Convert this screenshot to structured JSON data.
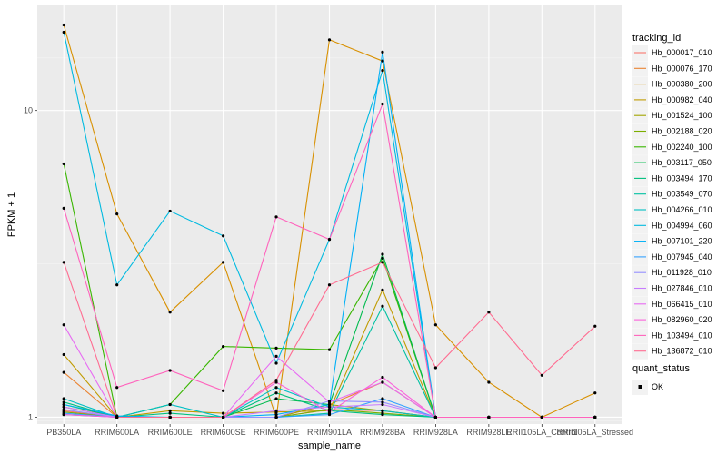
{
  "chart_data": {
    "type": "line",
    "xlabel": "sample_name",
    "ylabel": "FPKM + 1",
    "y_scale": "log10",
    "ylim": [
      0.95,
      22
    ],
    "y_ticks": [
      1,
      10
    ],
    "y_tick_labels": [
      "1",
      "10"
    ],
    "grid": true,
    "legend_position": "right",
    "categories": [
      "PB350LA",
      "RRIM600LA",
      "RRIM600LE",
      "RRIM600SE",
      "RRIM600PE",
      "RRIM901LA",
      "RRIM928BA",
      "RRIM928LA",
      "RRIM928LE",
      "RRII105LA_Control",
      "RRII105LA_Stressed"
    ],
    "legend_title": "tracking_id",
    "series": [
      {
        "name": "Hb_000017_010",
        "color": "#F8766D",
        "values": [
          1.05,
          1,
          1,
          1,
          1,
          1.06,
          1.05,
          1,
          1,
          1,
          1
        ]
      },
      {
        "name": "Hb_000076_170",
        "color": "#EA8331",
        "values": [
          1.4,
          1,
          1,
          1,
          1,
          1.1,
          1.3,
          1,
          1,
          1,
          1
        ]
      },
      {
        "name": "Hb_000380_200",
        "color": "#D89000",
        "values": [
          19,
          4.6,
          2.2,
          3.2,
          1,
          17,
          14.5,
          2,
          1.3,
          1,
          1.2
        ]
      },
      {
        "name": "Hb_000982_040",
        "color": "#C09B00",
        "values": [
          1.6,
          1,
          1.05,
          1.03,
          1.04,
          1.05,
          2.6,
          1,
          1,
          1,
          1
        ]
      },
      {
        "name": "Hb_001524_100",
        "color": "#A3A500",
        "values": [
          1.08,
          1,
          1,
          1,
          1,
          1.1,
          1.05,
          1,
          1,
          1,
          1
        ]
      },
      {
        "name": "Hb_002188_020",
        "color": "#7CAE00",
        "values": [
          1.04,
          1,
          1,
          1,
          1,
          1.06,
          1.03,
          1,
          1,
          1,
          1
        ]
      },
      {
        "name": "Hb_002240_100",
        "color": "#39B600",
        "values": [
          6.7,
          1,
          1.1,
          1.7,
          1.68,
          1.66,
          3.3,
          1,
          1,
          1,
          1
        ]
      },
      {
        "name": "Hb_003117_050",
        "color": "#00BB4E",
        "values": [
          1.1,
          1,
          1,
          1,
          1.15,
          1.1,
          3.4,
          1,
          1,
          1,
          1
        ]
      },
      {
        "name": "Hb_003494_170",
        "color": "#00BF7D",
        "values": [
          1.12,
          1,
          1.03,
          1,
          1.2,
          1.05,
          1.02,
          1,
          1,
          1,
          1
        ]
      },
      {
        "name": "Hb_003549_070",
        "color": "#00C1A3",
        "values": [
          1.02,
          1,
          1,
          1,
          1,
          1.03,
          2.3,
          1,
          1,
          1,
          1
        ]
      },
      {
        "name": "Hb_004266_010",
        "color": "#00BFC4",
        "values": [
          1.15,
          1,
          1.1,
          1,
          1.25,
          1.08,
          1.05,
          1,
          1,
          1,
          1
        ]
      },
      {
        "name": "Hb_004994_060",
        "color": "#00BAE0",
        "values": [
          18,
          2.7,
          4.7,
          3.9,
          1.5,
          3.8,
          13.5,
          1,
          1,
          1,
          1
        ]
      },
      {
        "name": "Hb_007101_220",
        "color": "#00B0F6",
        "values": [
          1.1,
          1.01,
          1,
          1,
          1.02,
          1.1,
          15.5,
          1,
          1,
          1,
          1
        ]
      },
      {
        "name": "Hb_007945_040",
        "color": "#35A2FF",
        "values": [
          1.03,
          1,
          1,
          1,
          1,
          1.02,
          1.15,
          1,
          1,
          1,
          1
        ]
      },
      {
        "name": "Hb_011928_010",
        "color": "#9590FF",
        "values": [
          1.06,
          1,
          1,
          1,
          1,
          1.13,
          1.12,
          1,
          1,
          1,
          1
        ]
      },
      {
        "name": "Hb_027846_010",
        "color": "#C77CFF",
        "values": [
          1.08,
          1,
          1,
          1,
          1.05,
          1.08,
          1.1,
          1,
          1,
          1,
          1
        ]
      },
      {
        "name": "Hb_066415_010",
        "color": "#E76BF3",
        "values": [
          2,
          1,
          1,
          1,
          1.58,
          1.12,
          1.3,
          1,
          1,
          1,
          1
        ]
      },
      {
        "name": "Hb_082960_020",
        "color": "#FA62DB",
        "values": [
          1.02,
          1,
          1,
          1,
          1.3,
          1.04,
          1.35,
          1,
          1,
          1,
          1
        ]
      },
      {
        "name": "Hb_103494_010",
        "color": "#FF62BC",
        "values": [
          4.8,
          1.25,
          1.42,
          1.22,
          4.5,
          3.8,
          10.5,
          1,
          1,
          1,
          1
        ]
      },
      {
        "name": "Hb_136872_010",
        "color": "#FF6C91",
        "values": [
          3.2,
          1,
          1,
          1,
          1.32,
          2.7,
          3.2,
          1.45,
          2.2,
          1.37,
          1.98
        ]
      }
    ],
    "color_legend": {
      "title": "quant_status",
      "entries": [
        "OK"
      ]
    }
  }
}
